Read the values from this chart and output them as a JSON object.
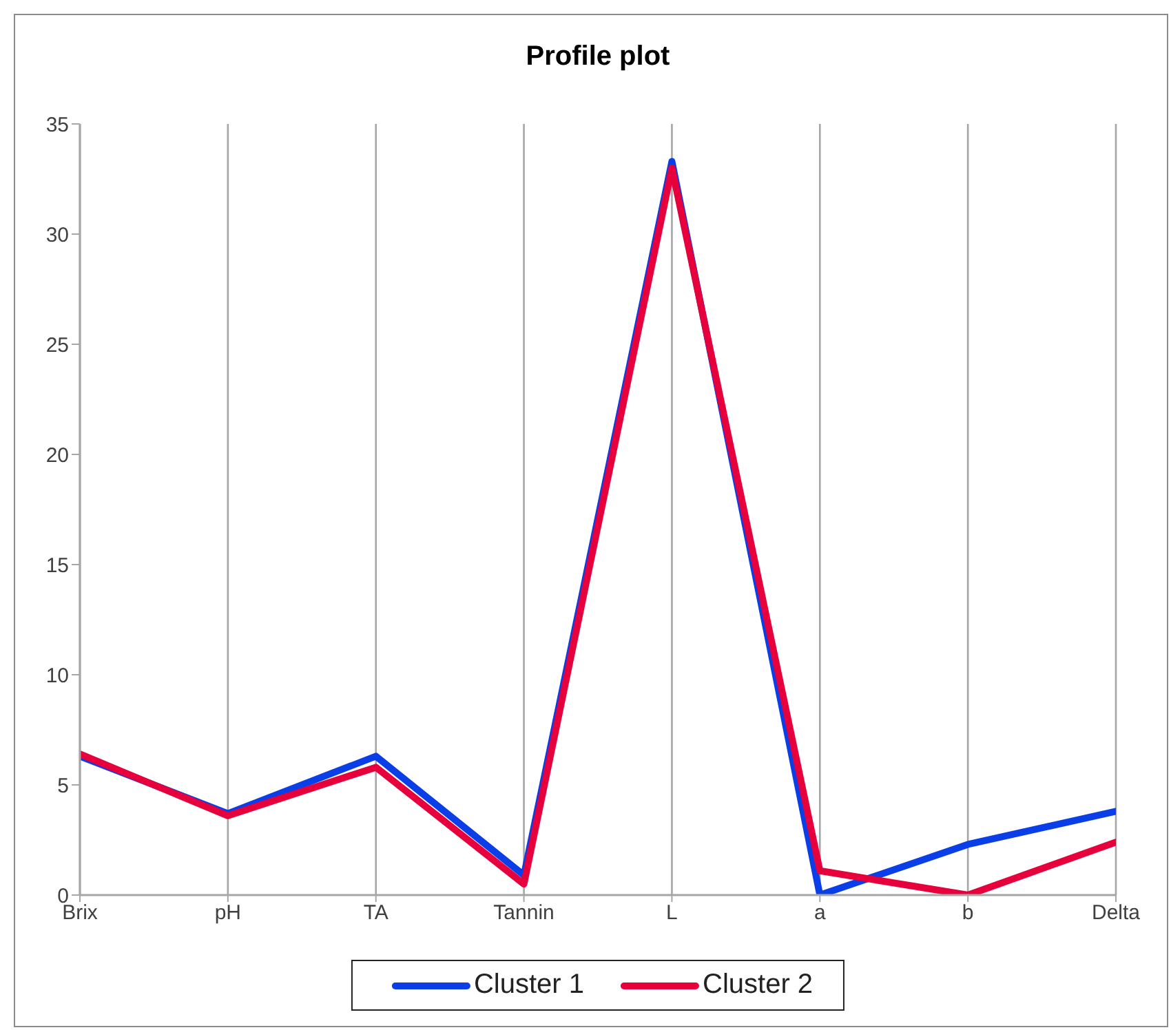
{
  "chart_data": {
    "type": "line",
    "title": "Profile plot",
    "categories": [
      "Brix",
      "pH",
      "TA",
      "Tannin",
      "L",
      "a",
      "b",
      "Delta"
    ],
    "series": [
      {
        "name": "Cluster 1",
        "color": "#0a3ee6",
        "values": [
          6.3,
          3.7,
          6.3,
          0.9,
          33.3,
          0,
          2.3,
          3.8
        ]
      },
      {
        "name": "Cluster 2",
        "color": "#e6003c",
        "values": [
          6.4,
          3.6,
          5.8,
          0.5,
          33.0,
          1.1,
          0,
          2.4
        ]
      }
    ],
    "ylim": [
      0,
      35
    ],
    "yticks": [
      0,
      5,
      10,
      15,
      20,
      25,
      30,
      35
    ],
    "grid": "x",
    "legend": "bottom",
    "marker": "none"
  }
}
